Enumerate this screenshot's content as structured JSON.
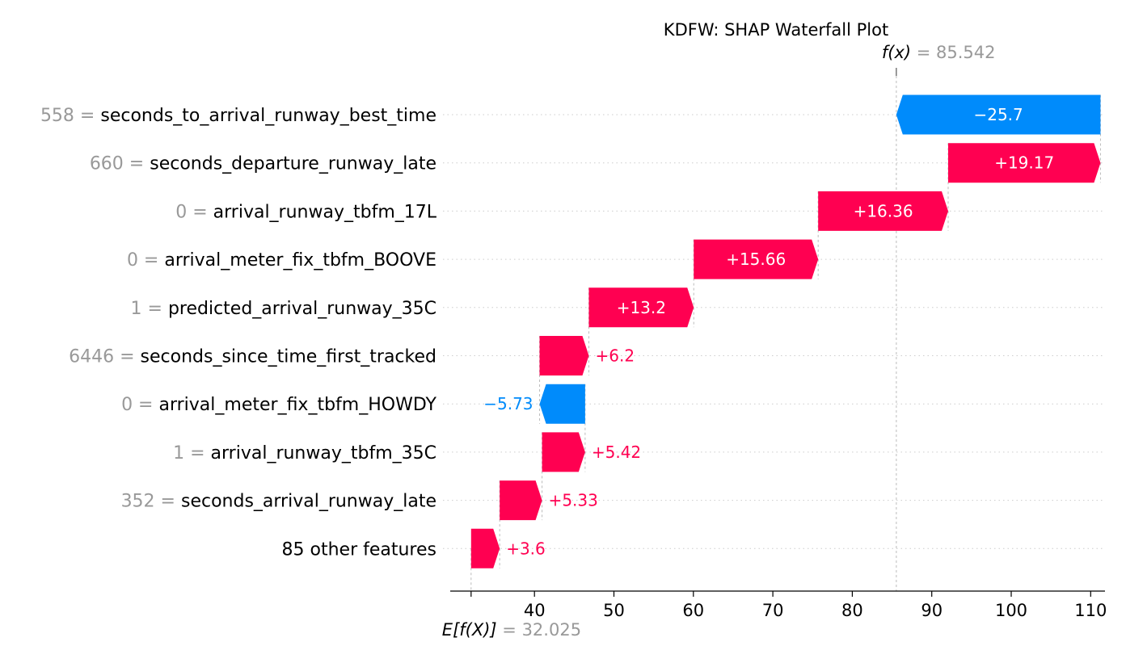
{
  "chart_data": {
    "type": "waterfall",
    "title": "KDFW: SHAP Waterfall Plot",
    "fx_label": "f(x)",
    "fx_value": "85.542",
    "efx_label": "E[f(X)]",
    "efx_value": "32.025",
    "base_value": 32.025,
    "final_value": 85.542,
    "xlim": [
      29.4,
      111.8
    ],
    "xticks": [
      40,
      50,
      60,
      70,
      80,
      90,
      100,
      110
    ],
    "xtick_labels": [
      "40",
      "50",
      "60",
      "70",
      "80",
      "90",
      "100",
      "110"
    ],
    "positive_color": "#ff0051",
    "negative_color": "#008bfb",
    "features": [
      {
        "value_text": "558",
        "name": "seconds_to_arrival_runway_best_time",
        "shap": -25.7,
        "label": "−25.7"
      },
      {
        "value_text": "660",
        "name": "seconds_departure_runway_late",
        "shap": 19.17,
        "label": "+19.17"
      },
      {
        "value_text": "0",
        "name": "arrival_runway_tbfm_17L",
        "shap": 16.36,
        "label": "+16.36"
      },
      {
        "value_text": "0",
        "name": "arrival_meter_fix_tbfm_BOOVE",
        "shap": 15.66,
        "label": "+15.66"
      },
      {
        "value_text": "1",
        "name": "predicted_arrival_runway_35C",
        "shap": 13.2,
        "label": "+13.2"
      },
      {
        "value_text": "6446",
        "name": "seconds_since_time_first_tracked",
        "shap": 6.2,
        "label": "+6.2"
      },
      {
        "value_text": "0",
        "name": "arrival_meter_fix_tbfm_HOWDY",
        "shap": -5.73,
        "label": "−5.73"
      },
      {
        "value_text": "1",
        "name": "arrival_runway_tbfm_35C",
        "shap": 5.42,
        "label": "+5.42"
      },
      {
        "value_text": "352",
        "name": "seconds_arrival_runway_late",
        "shap": 5.33,
        "label": "+5.33"
      },
      {
        "value_text": "",
        "name": "85 other features",
        "shap": 3.6,
        "label": "+3.6"
      }
    ]
  }
}
